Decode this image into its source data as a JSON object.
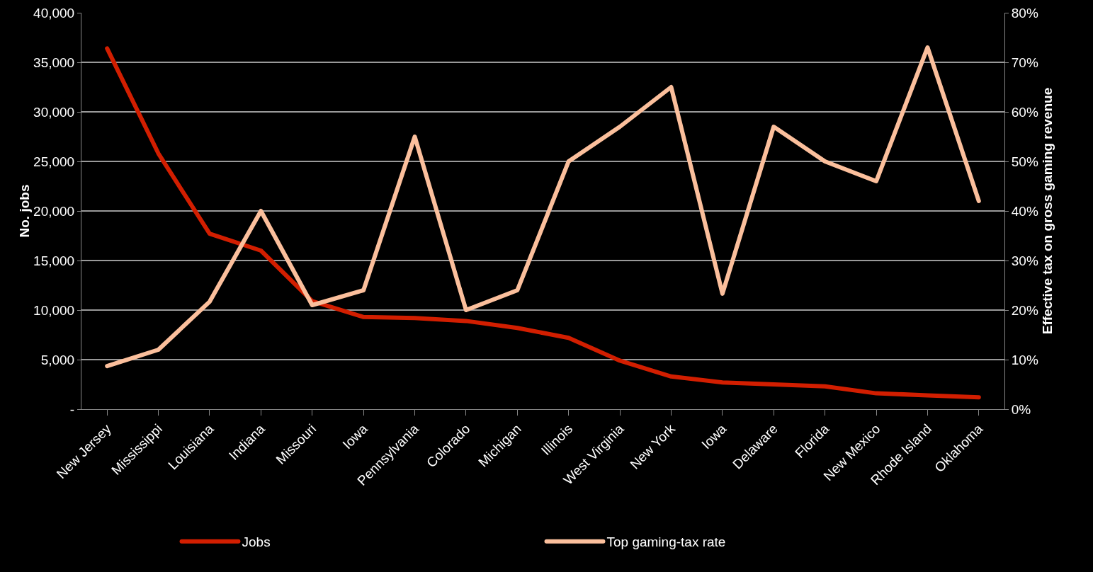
{
  "chart_data": {
    "type": "line",
    "categories": [
      "New Jersey",
      "Mississippi",
      "Louisiana",
      "Indiana",
      "Missouri",
      "Iowa",
      "Pennsylvania",
      "Colorado",
      "Michigan",
      "Illinois",
      "West Virginia",
      "New York",
      "Iowa",
      "Delaware",
      "Florida",
      "New Mexico",
      "Rhode Island",
      "Oklahoma"
    ],
    "series": [
      {
        "name": "Jobs",
        "color": "#d21e00",
        "values": [
          36400,
          25800,
          17700,
          16000,
          10900,
          9300,
          9200,
          8900,
          8200,
          7200,
          4900,
          3300,
          2700,
          2500,
          2300,
          1600,
          1400,
          1200
        ]
      },
      {
        "name": "Top gaming-tax rate",
        "color": "#fbbf9c",
        "axis": "y2",
        "values": [
          8.7,
          12,
          21.7,
          40,
          21,
          24,
          55,
          20,
          24,
          50,
          57,
          65,
          23.3,
          57,
          50,
          46,
          73,
          42
        ]
      }
    ],
    "ylabel": "No. jobs",
    "y2label": "Effective tax on gross gaming revenue",
    "ylim": [
      0,
      40000
    ],
    "yticks": [
      {
        "value": 0,
        "label": "-"
      },
      {
        "value": 5000,
        "label": "5,000"
      },
      {
        "value": 10000,
        "label": "10,000"
      },
      {
        "value": 15000,
        "label": "15,000"
      },
      {
        "value": 20000,
        "label": "20,000"
      },
      {
        "value": 25000,
        "label": "25,000"
      },
      {
        "value": 30000,
        "label": "30,000"
      },
      {
        "value": 35000,
        "label": "35,000"
      },
      {
        "value": 40000,
        "label": "40,000"
      }
    ],
    "y2lim": [
      0,
      80
    ],
    "y2ticks": [
      {
        "value": 0,
        "label": "0%"
      },
      {
        "value": 10,
        "label": "10%"
      },
      {
        "value": 20,
        "label": "20%"
      },
      {
        "value": 30,
        "label": "30%"
      },
      {
        "value": 40,
        "label": "40%"
      },
      {
        "value": 50,
        "label": "50%"
      },
      {
        "value": 60,
        "label": "60%"
      },
      {
        "value": 70,
        "label": "70%"
      },
      {
        "value": 80,
        "label": "80%"
      }
    ],
    "grid": "y",
    "legend": "bottom",
    "marker": "none",
    "line_style": "solid"
  }
}
